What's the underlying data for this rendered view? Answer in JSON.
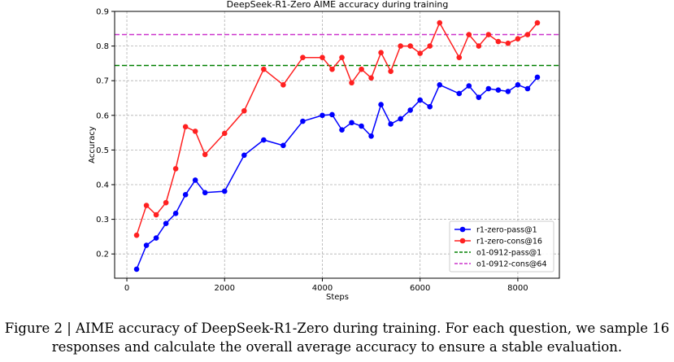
{
  "chart_data": {
    "type": "line",
    "title": "DeepSeek-R1-Zero AIME accuracy during training",
    "xlabel": "Steps",
    "ylabel": "Accuracy",
    "xlim": [
      -250,
      8850
    ],
    "ylim": [
      0.13,
      0.9
    ],
    "xticks": [
      0,
      2000,
      4000,
      6000,
      8000
    ],
    "yticks": [
      0.2,
      0.3,
      0.4,
      0.5,
      0.6,
      0.7,
      0.8,
      0.9
    ],
    "grid": true,
    "legend_position": "lower-right",
    "series": [
      {
        "name": "r1-zero-pass@1",
        "color": "#0000ff",
        "style": "solid-markers",
        "x": [
          200,
          400,
          600,
          800,
          1000,
          1200,
          1400,
          1600,
          2000,
          2400,
          2800,
          3200,
          3600,
          4000,
          4200,
          4400,
          4600,
          4800,
          5000,
          5200,
          5400,
          5600,
          5800,
          6000,
          6200,
          6400,
          6800,
          7000,
          7200,
          7400,
          7600,
          7800,
          8000,
          8200,
          8400
        ],
        "values": [
          0.156,
          0.225,
          0.246,
          0.288,
          0.317,
          0.371,
          0.413,
          0.377,
          0.381,
          0.485,
          0.529,
          0.513,
          0.583,
          0.6,
          0.602,
          0.558,
          0.579,
          0.569,
          0.54,
          0.631,
          0.575,
          0.59,
          0.615,
          0.644,
          0.625,
          0.688,
          0.663,
          0.685,
          0.652,
          0.677,
          0.673,
          0.669,
          0.688,
          0.677,
          0.71
        ]
      },
      {
        "name": "r1-zero-cons@16",
        "color": "#ff2020",
        "style": "solid-markers",
        "x": [
          200,
          400,
          600,
          800,
          1000,
          1200,
          1400,
          1600,
          2000,
          2400,
          2800,
          3200,
          3600,
          4000,
          4200,
          4400,
          4600,
          4800,
          5000,
          5200,
          5400,
          5600,
          5800,
          6000,
          6200,
          6400,
          6800,
          7000,
          7200,
          7400,
          7600,
          7800,
          8000,
          8200,
          8400
        ],
        "values": [
          0.254,
          0.34,
          0.313,
          0.348,
          0.446,
          0.567,
          0.554,
          0.487,
          0.548,
          0.613,
          0.733,
          0.688,
          0.767,
          0.767,
          0.733,
          0.767,
          0.694,
          0.733,
          0.708,
          0.781,
          0.727,
          0.8,
          0.8,
          0.779,
          0.8,
          0.867,
          0.767,
          0.833,
          0.8,
          0.833,
          0.813,
          0.808,
          0.821,
          0.833,
          0.867
        ]
      },
      {
        "name": "o1-0912-pass@1",
        "color": "#008000",
        "style": "dashed",
        "hline": 0.744
      },
      {
        "name": "o1-0912-cons@64",
        "color": "#cc33cc",
        "style": "dashed",
        "hline": 0.833
      }
    ]
  },
  "caption": "Figure 2 | AIME accuracy of DeepSeek-R1-Zero during training. For each question, we sample 16 responses and calculate the overall average accuracy to ensure a stable evaluation."
}
